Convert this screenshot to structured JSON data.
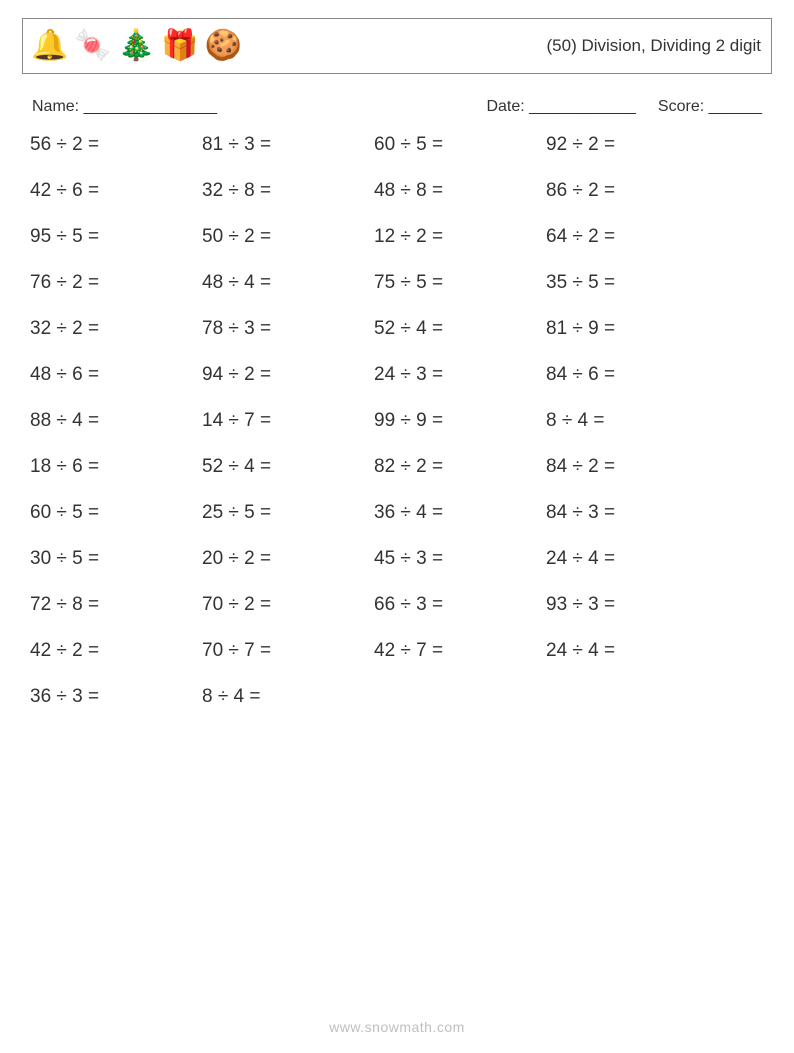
{
  "header": {
    "icons": [
      "🔔",
      "🍬",
      "🎄",
      "🎁",
      "🍪"
    ],
    "title": "(50) Division, Dividing 2 digit"
  },
  "info": {
    "name_label": "Name: _______________",
    "date_label": "Date: ____________",
    "score_label": "Score: ______"
  },
  "division_sign": "÷",
  "equals": " =",
  "problems": {
    "columns": 4,
    "rows": [
      [
        [
          56,
          2
        ],
        [
          81,
          3
        ],
        [
          60,
          5
        ],
        [
          92,
          2
        ]
      ],
      [
        [
          42,
          6
        ],
        [
          32,
          8
        ],
        [
          48,
          8
        ],
        [
          86,
          2
        ]
      ],
      [
        [
          95,
          5
        ],
        [
          50,
          2
        ],
        [
          12,
          2
        ],
        [
          64,
          2
        ]
      ],
      [
        [
          76,
          2
        ],
        [
          48,
          4
        ],
        [
          75,
          5
        ],
        [
          35,
          5
        ]
      ],
      [
        [
          32,
          2
        ],
        [
          78,
          3
        ],
        [
          52,
          4
        ],
        [
          81,
          9
        ]
      ],
      [
        [
          48,
          6
        ],
        [
          94,
          2
        ],
        [
          24,
          3
        ],
        [
          84,
          6
        ]
      ],
      [
        [
          88,
          4
        ],
        [
          14,
          7
        ],
        [
          99,
          9
        ],
        [
          8,
          4
        ]
      ],
      [
        [
          18,
          6
        ],
        [
          52,
          4
        ],
        [
          82,
          2
        ],
        [
          84,
          2
        ]
      ],
      [
        [
          60,
          5
        ],
        [
          25,
          5
        ],
        [
          36,
          4
        ],
        [
          84,
          3
        ]
      ],
      [
        [
          30,
          5
        ],
        [
          20,
          2
        ],
        [
          45,
          3
        ],
        [
          24,
          4
        ]
      ],
      [
        [
          72,
          8
        ],
        [
          70,
          2
        ],
        [
          66,
          3
        ],
        [
          93,
          3
        ]
      ],
      [
        [
          42,
          2
        ],
        [
          70,
          7
        ],
        [
          42,
          7
        ],
        [
          24,
          4
        ]
      ],
      [
        [
          36,
          3
        ],
        [
          8,
          4
        ]
      ]
    ]
  },
  "footer": "www.snowmath.com"
}
